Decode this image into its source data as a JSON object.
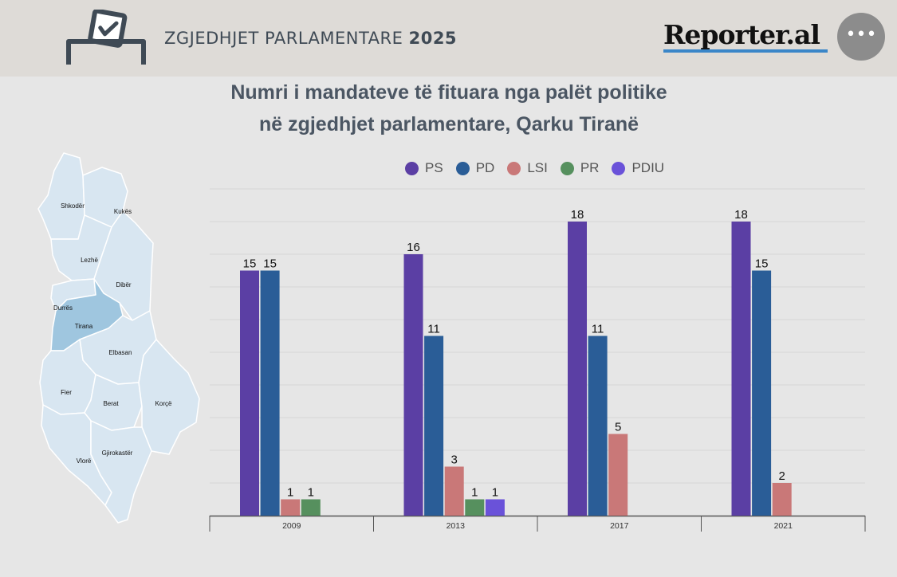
{
  "header": {
    "title_main": "ZGJEDHJET PARLAMENTARE",
    "title_year": "2025",
    "brand": "Reporter.al",
    "more_label": "•••"
  },
  "map": {
    "regions": [
      "Shkodër",
      "Kukës",
      "Lezhë",
      "Dibër",
      "Durrës",
      "Tirana",
      "Elbasan",
      "Fier",
      "Berat",
      "Korçë",
      "Vlorë",
      "Gjirokastër"
    ],
    "highlighted": "Tirana",
    "colors": {
      "base": "#d8e6f1",
      "highlight": "#9fc6df"
    }
  },
  "chart_data": {
    "type": "bar",
    "title": "Numri i mandateve të fituara nga palët politike në zgjedhjet parlamentare, Qarku Tiranë",
    "title_lines": [
      "Numri i mandateve të fituara nga palët politike",
      "në zgjedhjet parlamentare, Qarku Tiranë"
    ],
    "categories": [
      "2009",
      "2013",
      "2017",
      "2021"
    ],
    "series": [
      {
        "name": "PS",
        "color": "#5b3fa4",
        "values": [
          15,
          16,
          18,
          18
        ]
      },
      {
        "name": "PD",
        "color": "#2a5d97",
        "values": [
          15,
          11,
          11,
          15
        ]
      },
      {
        "name": "LSI",
        "color": "#c97878",
        "values": [
          1,
          3,
          5,
          2
        ]
      },
      {
        "name": "PR",
        "color": "#56905e",
        "values": [
          1,
          1,
          null,
          null
        ]
      },
      {
        "name": "PDIU",
        "color": "#6a52d9",
        "values": [
          null,
          1,
          null,
          null
        ]
      }
    ],
    "ylim": [
      0,
      20
    ],
    "grid": true,
    "legend": "top"
  }
}
